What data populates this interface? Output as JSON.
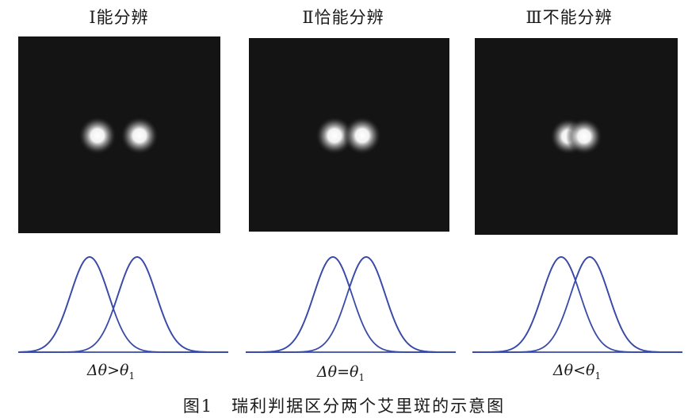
{
  "panels": [
    {
      "title": "Ⅰ能分辨",
      "delta": "Δθ",
      "relation": ">",
      "theta": "θ",
      "sub": "1"
    },
    {
      "title": "Ⅱ恰能分辨",
      "delta": "Δθ",
      "relation": "=",
      "theta": "θ",
      "sub": "1"
    },
    {
      "title": "Ⅲ不能分辨",
      "delta": "Δθ",
      "relation": "<",
      "theta": "θ",
      "sub": "1"
    }
  ],
  "caption": "图1　瑞利判据区分两个艾里斑的示意图",
  "colors": {
    "curve": "#3a4aa8",
    "background": "#141414",
    "spot": "#ffffff"
  }
}
